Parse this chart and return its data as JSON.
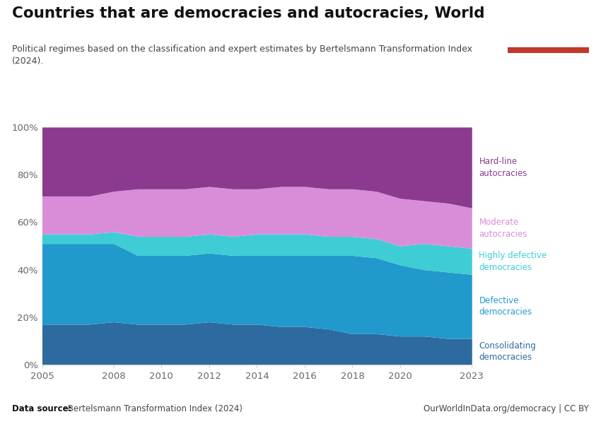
{
  "title": "Countries that are democracies and autocracies, World",
  "subtitle": "Political regimes based on the classification and expert estimates by Bertelsmann Transformation Index\n(2024).",
  "datasource_bold": "Data source:",
  "datasource_rest": " Bertelsmann Transformation Index (2024)",
  "url": "OurWorldInData.org/democracy | CC BY",
  "years": [
    2005,
    2006,
    2007,
    2008,
    2009,
    2010,
    2011,
    2012,
    2013,
    2014,
    2015,
    2016,
    2017,
    2018,
    2019,
    2020,
    2021,
    2022,
    2023
  ],
  "series": {
    "Consolidating\ndemocracies": [
      17,
      17,
      17,
      18,
      17,
      17,
      17,
      18,
      17,
      17,
      16,
      16,
      15,
      13,
      13,
      12,
      12,
      11,
      11
    ],
    "Defective\ndemocracies": [
      34,
      34,
      34,
      33,
      29,
      29,
      29,
      29,
      29,
      29,
      30,
      30,
      31,
      33,
      32,
      30,
      28,
      28,
      27
    ],
    "Highly defective\ndemocracies": [
      4,
      4,
      4,
      5,
      8,
      8,
      8,
      8,
      8,
      9,
      9,
      9,
      8,
      8,
      8,
      8,
      11,
      11,
      11
    ],
    "Moderate\nautocracies": [
      16,
      16,
      16,
      17,
      20,
      20,
      20,
      20,
      20,
      19,
      20,
      20,
      20,
      20,
      20,
      20,
      18,
      18,
      17
    ],
    "Hard-line\nautocracies": [
      29,
      29,
      29,
      27,
      26,
      26,
      26,
      25,
      26,
      26,
      25,
      25,
      26,
      26,
      27,
      30,
      31,
      32,
      34
    ]
  },
  "colors": {
    "Consolidating\ndemocracies": "#2d6a9f",
    "Defective\ndemocracies": "#2199cc",
    "Highly defective\ndemocracies": "#3ecdd4",
    "Moderate\nautocracies": "#d98dd8",
    "Hard-line\nautocracies": "#8b3a8f"
  },
  "label_colors": {
    "Consolidating\ndemocracies": "#2d6a9f",
    "Defective\ndemocracies": "#2199cc",
    "Highly defective\ndemocracies": "#3ecdd4",
    "Moderate\nautocracies": "#d98dd8",
    "Hard-line\nautocracies": "#8b3a8f"
  },
  "background_color": "#ffffff",
  "logo_bg": "#1a3a5c",
  "logo_red": "#c0392b",
  "ylim": [
    0,
    100
  ],
  "yticks": [
    0,
    20,
    40,
    60,
    80,
    100
  ],
  "ytick_labels": [
    "0%",
    "20%",
    "40%",
    "60%",
    "80%",
    "100%"
  ],
  "xticks": [
    2005,
    2008,
    2010,
    2012,
    2014,
    2016,
    2018,
    2020,
    2023
  ],
  "xtick_labels": [
    "2005",
    "2008",
    "2010",
    "2012",
    "2014",
    "2016",
    "2018",
    "2020",
    "2023"
  ]
}
